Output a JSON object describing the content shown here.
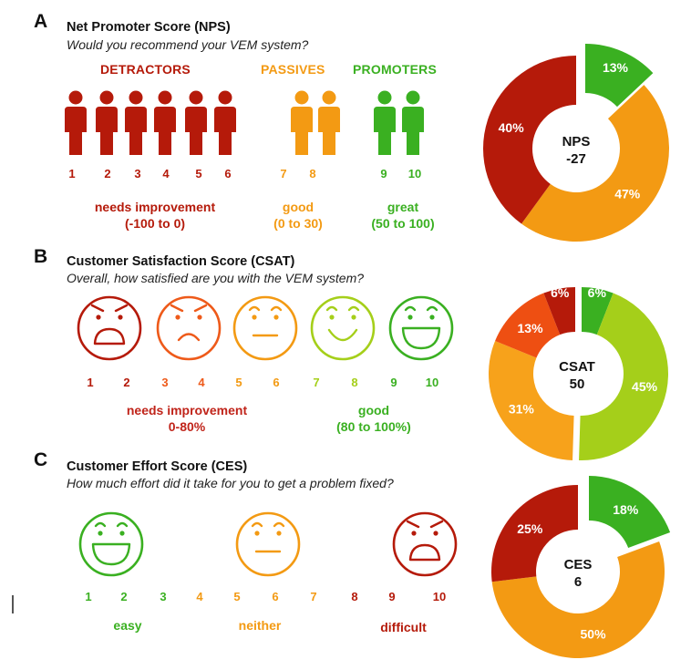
{
  "colors": {
    "dark_red": "#b51a0a",
    "red_orange": "#ee4f12",
    "orange": "#f39a13",
    "light_orange": "#f7a21b",
    "lime": "#a5cf1a",
    "green": "#3ab021",
    "text": "#111111"
  },
  "nps": {
    "letter": "A",
    "title": "Net Promoter Score (NPS)",
    "question": "Would you recommend your VEM system?",
    "groups": [
      {
        "label": "DETRACTORS",
        "color": "#b51a0a",
        "scores": [
          "1",
          "2",
          "3",
          "4",
          "5",
          "6"
        ],
        "rating": "needs improvement",
        "range": "(-100 to 0)"
      },
      {
        "label": "PASSIVES",
        "color": "#f39a13",
        "scores": [
          "7",
          "8"
        ],
        "rating": "good",
        "range": "(0 to 30)"
      },
      {
        "label": "PROMOTERS",
        "color": "#3ab021",
        "scores": [
          "9",
          "10"
        ],
        "rating": "great",
        "range": "(50 to 100)"
      }
    ],
    "icon": "person-icon"
  },
  "csat": {
    "letter": "B",
    "title": "Customer Satisfaction Score (CSAT)",
    "question": "Overall, how satisfied are you with the VEM system?",
    "faces": [
      {
        "icon": "angry-face-icon",
        "color": "#b51a0a",
        "scores": [
          "1",
          "2"
        ]
      },
      {
        "icon": "frown-face-icon",
        "color": "#ee5a1a",
        "scores": [
          "3",
          "4"
        ]
      },
      {
        "icon": "neutral-face-icon",
        "color": "#f39a13",
        "scores": [
          "5",
          "6"
        ]
      },
      {
        "icon": "smile-face-icon",
        "color": "#a5cf1a",
        "scores": [
          "7",
          "8"
        ]
      },
      {
        "icon": "grin-face-icon",
        "color": "#3ab021",
        "scores": [
          "9",
          "10"
        ]
      }
    ],
    "ratings": [
      {
        "rating": "needs improvement",
        "range": "0-80%",
        "color": "#c0241a"
      },
      {
        "rating": "good",
        "range": "(80 to 100%)",
        "color": "#3ab021"
      }
    ]
  },
  "ces": {
    "letter": "C",
    "title": "Customer Effort Score (CES)",
    "question": "How much effort did it take for you to get a problem fixed?",
    "faces": [
      {
        "icon": "grin-face-icon",
        "color": "#3ab021"
      },
      {
        "icon": "neutral-face-icon",
        "color": "#f39a13"
      },
      {
        "icon": "angry-face-icon",
        "color": "#b51a0a"
      }
    ],
    "scores": [
      {
        "n": "1",
        "color": "#3ab021"
      },
      {
        "n": "2",
        "color": "#3ab021"
      },
      {
        "n": "3",
        "color": "#3ab021"
      },
      {
        "n": "4",
        "color": "#f39a13"
      },
      {
        "n": "5",
        "color": "#f39a13"
      },
      {
        "n": "6",
        "color": "#f39a13"
      },
      {
        "n": "7",
        "color": "#f39a13"
      },
      {
        "n": "8",
        "color": "#b51a0a"
      },
      {
        "n": "9",
        "color": "#b51a0a"
      },
      {
        "n": "10",
        "color": "#b51a0a"
      }
    ],
    "ratings": [
      {
        "rating": "easy",
        "color": "#3ab021"
      },
      {
        "rating": "neither",
        "color": "#f39a13"
      },
      {
        "rating": "difficult",
        "color": "#b51a0a"
      }
    ]
  },
  "chart_data": [
    {
      "type": "pie",
      "title": "NPS",
      "center_label": "NPS",
      "center_value": "-27",
      "slices": [
        {
          "name": "Promoters",
          "value": 13,
          "label": "13%",
          "color": "#3ab021",
          "exploded": true
        },
        {
          "name": "Passives",
          "value": 47,
          "label": "47%",
          "color": "#f39a13",
          "exploded": false
        },
        {
          "name": "Detractors",
          "value": 40,
          "label": "40%",
          "color": "#b51a0a",
          "exploded": false
        }
      ]
    },
    {
      "type": "pie",
      "title": "CSAT",
      "center_label": "CSAT",
      "center_value": "50",
      "split": "left-right",
      "slices": [
        {
          "name": "9-10",
          "value": 6,
          "label": "6%",
          "color": "#3ab021",
          "exploded": true
        },
        {
          "name": "7-8",
          "value": 45,
          "label": "45%",
          "color": "#a5cf1a",
          "exploded": true
        },
        {
          "name": "5-6",
          "value": 31,
          "label": "31%",
          "color": "#f7a21b",
          "exploded": false
        },
        {
          "name": "3-4",
          "value": 13,
          "label": "13%",
          "color": "#ee4f12",
          "exploded": false
        },
        {
          "name": "1-2",
          "value": 6,
          "label": "6%",
          "color": "#b51a0a",
          "exploded": false
        }
      ]
    },
    {
      "type": "pie",
      "title": "CES",
      "center_label": "CES",
      "center_value": "6",
      "slices": [
        {
          "name": "Easy",
          "value": 18,
          "label": "18%",
          "color": "#3ab021",
          "exploded": true
        },
        {
          "name": "Neither",
          "value": 50,
          "label": "50%",
          "color": "#f39a13",
          "exploded": false
        },
        {
          "name": "Difficult",
          "value": 25,
          "label": "25%",
          "color": "#b51a0a",
          "exploded": false
        }
      ]
    }
  ]
}
